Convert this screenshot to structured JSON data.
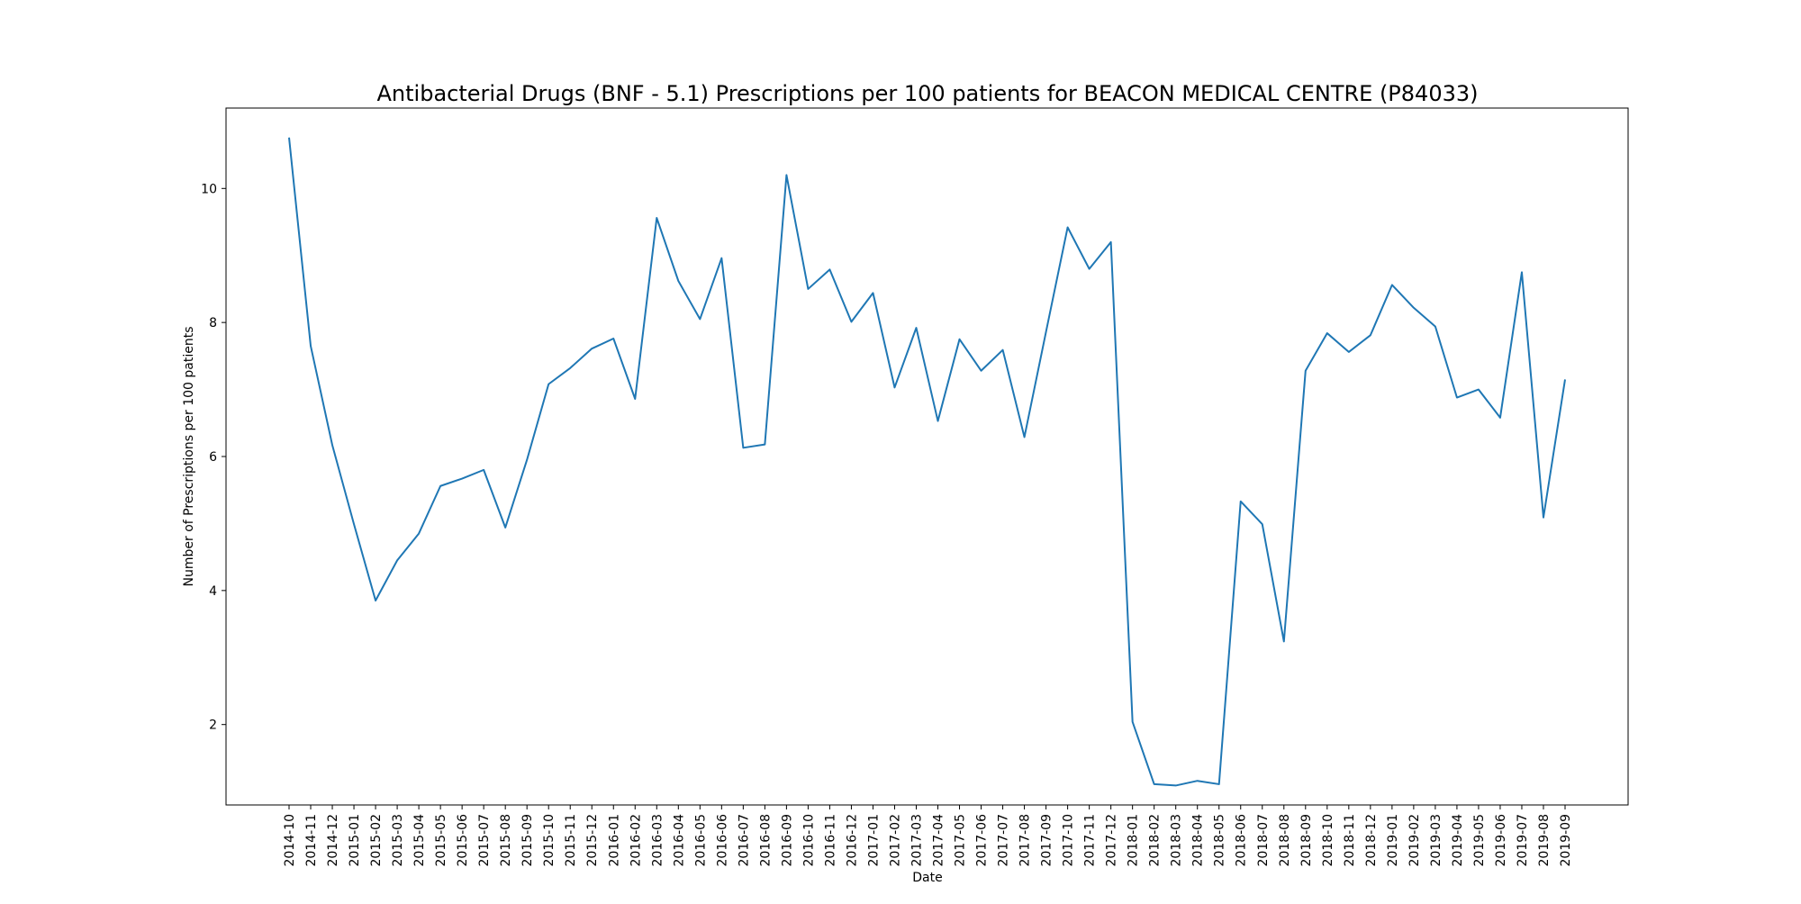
{
  "chart_data": {
    "type": "line",
    "title": "Antibacterial Drugs (BNF - 5.1) Prescriptions per 100 patients for BEACON MEDICAL CENTRE (P84033)",
    "xlabel": "Date",
    "ylabel": "Number of Prescriptions per 100 patients",
    "ylim": [
      0.8,
      11.2
    ],
    "yticks": [
      2,
      4,
      6,
      8,
      10
    ],
    "grid": false,
    "legend": "none",
    "line_color": "#1f77b4",
    "x": [
      "2014-10",
      "2014-11",
      "2014-12",
      "2015-01",
      "2015-02",
      "2015-03",
      "2015-04",
      "2015-05",
      "2015-06",
      "2015-07",
      "2015-08",
      "2015-09",
      "2015-10",
      "2015-11",
      "2015-12",
      "2016-01",
      "2016-02",
      "2016-03",
      "2016-04",
      "2016-05",
      "2016-06",
      "2016-07",
      "2016-08",
      "2016-09",
      "2016-10",
      "2016-11",
      "2016-12",
      "2017-01",
      "2017-02",
      "2017-03",
      "2017-04",
      "2017-05",
      "2017-06",
      "2017-07",
      "2017-08",
      "2017-09",
      "2017-10",
      "2017-11",
      "2017-12",
      "2018-01",
      "2018-02",
      "2018-03",
      "2018-04",
      "2018-05",
      "2018-06",
      "2018-07",
      "2018-08",
      "2018-09",
      "2018-10",
      "2018-11",
      "2018-12",
      "2019-01",
      "2019-02",
      "2019-03",
      "2019-04",
      "2019-05",
      "2019-06",
      "2019-07",
      "2019-08",
      "2019-09"
    ],
    "series": [
      {
        "values": [
          10.76,
          7.65,
          6.17,
          4.99,
          3.85,
          4.45,
          4.85,
          5.56,
          5.67,
          5.8,
          4.94,
          5.95,
          7.08,
          7.32,
          7.61,
          7.76,
          6.86,
          9.56,
          8.62,
          8.05,
          8.96,
          6.13,
          6.18,
          10.2,
          8.5,
          8.79,
          8.01,
          8.44,
          7.03,
          7.92,
          6.53,
          7.75,
          7.28,
          7.59,
          6.29,
          7.86,
          9.42,
          8.8,
          9.2,
          2.04,
          1.11,
          1.09,
          1.16,
          1.11,
          5.33,
          4.99,
          3.24,
          7.28,
          7.84,
          7.56,
          7.81,
          8.56,
          8.22,
          7.94,
          6.88,
          7.0,
          6.58,
          8.75,
          5.09,
          7.15
        ]
      }
    ]
  }
}
